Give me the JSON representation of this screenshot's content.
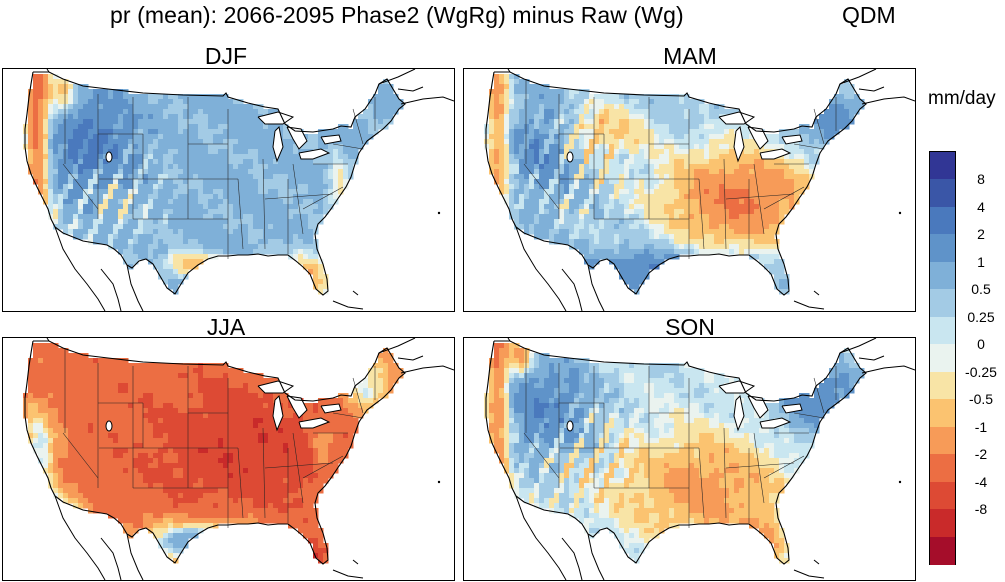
{
  "title": "pr (mean): 2066-2095 Phase2 (WgRg) minus Raw (Wg)",
  "method": "QDM",
  "units": "mm/day",
  "panels": [
    {
      "season": "DJF",
      "pattern": "djf"
    },
    {
      "season": "MAM",
      "pattern": "mam"
    },
    {
      "season": "JJA",
      "pattern": "jja"
    },
    {
      "season": "SON",
      "pattern": "son"
    }
  ],
  "colorbar": {
    "labels": [
      "8",
      "4",
      "2",
      "1",
      "0.5",
      "0.25",
      "0",
      "-0.25",
      "-0.5",
      "-1",
      "-2",
      "-4",
      "-8"
    ],
    "colors": [
      "#313695",
      "#3a56a7",
      "#4a79bd",
      "#5f93c9",
      "#7fb0d8",
      "#a3cbe5",
      "#c9e6f0",
      "#eaf3ef",
      "#f8e4a6",
      "#fbc370",
      "#f79b58",
      "#ec6e43",
      "#dd4a34",
      "#c92a2a",
      "#a50d2a"
    ]
  }
}
